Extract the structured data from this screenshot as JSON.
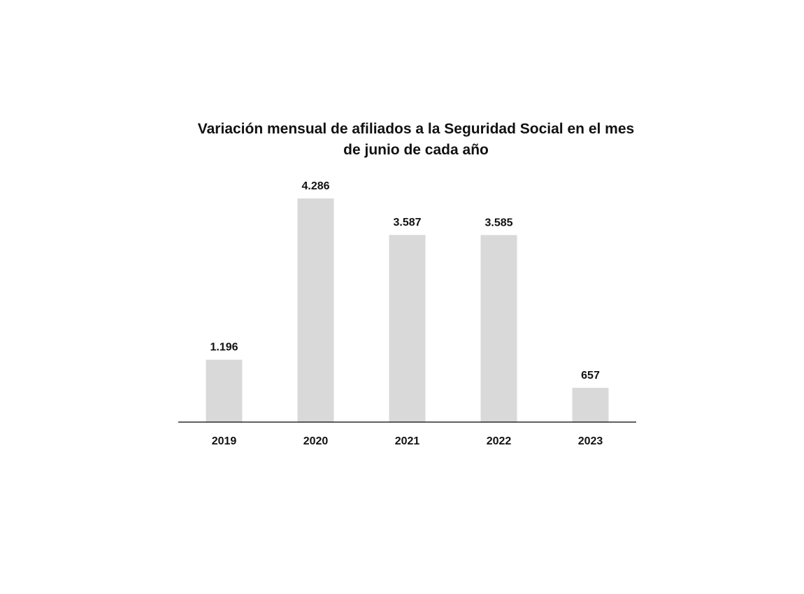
{
  "chart_data": {
    "type": "bar",
    "title": "Variación mensual de afiliados a la Seguridad Social en el mes de junio de cada año",
    "categories": [
      "2019",
      "2020",
      "2021",
      "2022",
      "2023"
    ],
    "values": [
      1196,
      4286,
      3587,
      3585,
      657
    ],
    "data_labels": [
      "1.196",
      "4.286",
      "3.587",
      "3.585",
      "657"
    ],
    "xlabel": "",
    "ylabel": "",
    "ylim": [
      0,
      4286
    ],
    "grid": false,
    "legend": "none",
    "bar_color": "#d9d9d9"
  }
}
